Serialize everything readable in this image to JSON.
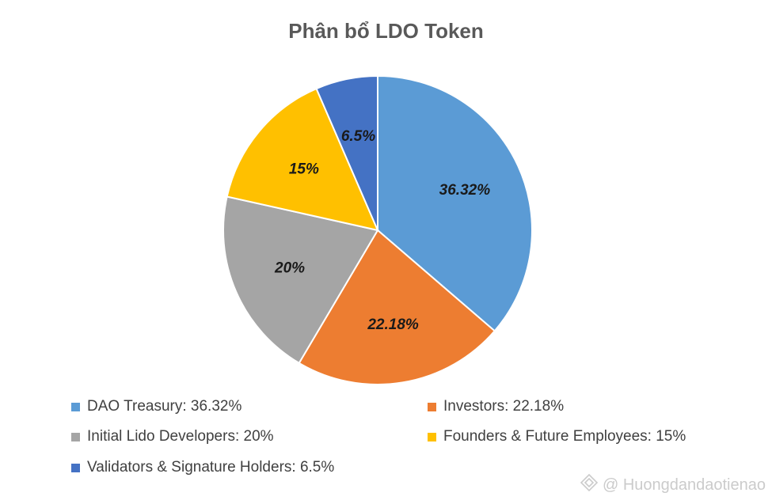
{
  "chart_data": {
    "type": "pie",
    "title": "Phân bổ LDO Token",
    "slices": [
      {
        "name": "DAO Treasury",
        "value": 36.32,
        "label": "36.32%",
        "legend": "DAO Treasury: 36.32%",
        "color": "#5B9BD5"
      },
      {
        "name": "Investors",
        "value": 22.18,
        "label": "22.18%",
        "legend": "Investors: 22.18%",
        "color": "#ED7D31"
      },
      {
        "name": "Initial Lido Developers",
        "value": 20,
        "label": "20%",
        "legend": "Initial Lido Developers: 20%",
        "color": "#A5A5A5"
      },
      {
        "name": "Founders & Future Employees",
        "value": 15,
        "label": "15%",
        "legend": "Founders & Future Employees: 15%",
        "color": "#FFC000"
      },
      {
        "name": "Validators & Signature Holders",
        "value": 6.5,
        "label": "6.5%",
        "legend": "Validators & Signature Holders: 6.5%",
        "color": "#4472C4"
      }
    ],
    "legend_position": "bottom"
  },
  "watermark": {
    "text": "@ Huongdandaotienao",
    "icon": "diamond-logo-icon"
  }
}
